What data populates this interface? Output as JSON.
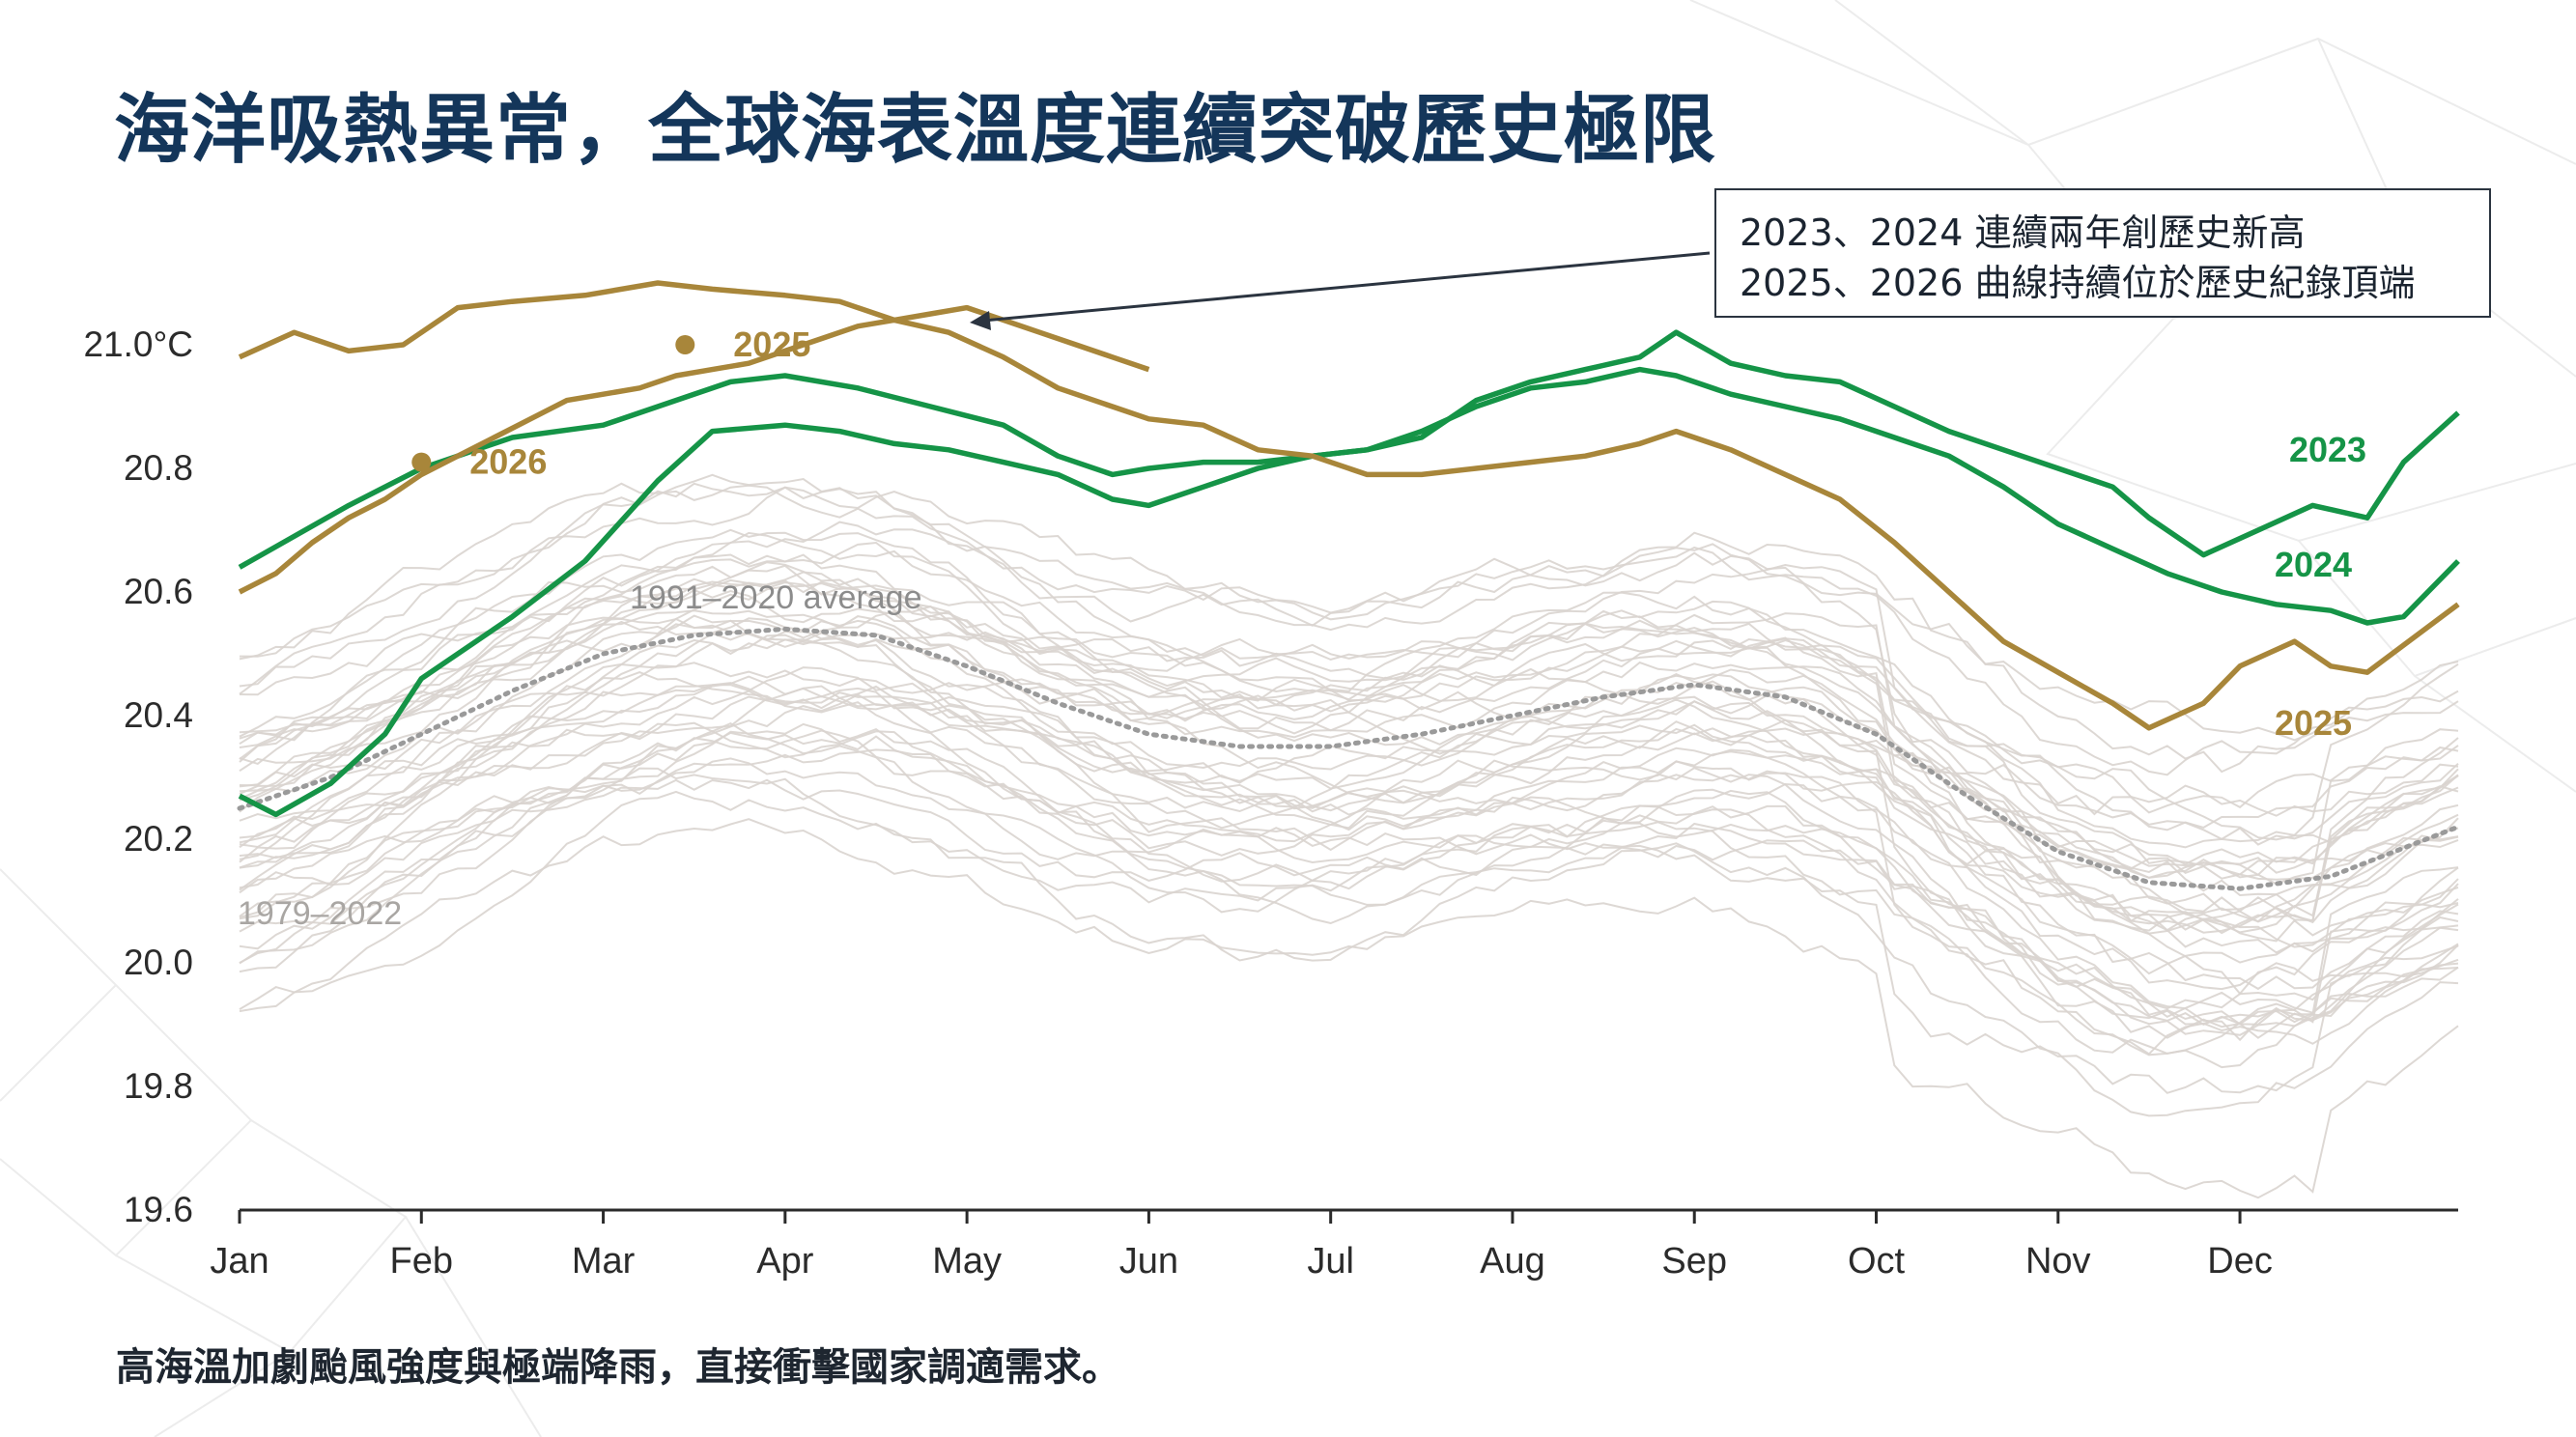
{
  "page": {
    "title": "海洋吸熱異常，全球海表溫度連續突破歷史極限",
    "callout": [
      "2023、2024 連續兩年創歷史新高",
      "2025、2026 曲線持續位於歷史紀錄頂端"
    ],
    "caption": "高海溫加劇颱風強度與極端降雨，直接衝擊國家調適需求。"
  },
  "colors": {
    "title": "#14365a",
    "green": "#159447",
    "gold": "#a8863a",
    "history": "#d9d4cf",
    "average": "#9a9a9a"
  },
  "chart_data": {
    "type": "line",
    "ylim": [
      19.6,
      21.1
    ],
    "y_ticks": [
      19.6,
      19.8,
      20.0,
      20.2,
      20.4,
      20.6,
      20.8,
      21.0
    ],
    "y_tick_labels": [
      "19.6",
      "19.8",
      "20.0",
      "20.2",
      "20.4",
      "20.6",
      "20.8",
      "21.0°C"
    ],
    "x_range": [
      0,
      12.2
    ],
    "months": [
      "Jan",
      "Feb",
      "Mar",
      "Apr",
      "May",
      "Jun",
      "Jul",
      "Aug",
      "Sep",
      "Oct",
      "Nov",
      "Dec"
    ],
    "history_label": "1979–2022",
    "series": [
      {
        "name": "2023",
        "style": "green",
        "label": "2023",
        "x": [
          0,
          0.2,
          0.5,
          0.8,
          1.0,
          1.5,
          1.9,
          2.3,
          2.6,
          3.0,
          3.3,
          3.6,
          3.9,
          4.2,
          4.5,
          4.8,
          5.0,
          5.3,
          5.6,
          5.9,
          6.2,
          6.5,
          6.8,
          7.1,
          7.4,
          7.7,
          7.9,
          8.2,
          8.5,
          8.8,
          9.1,
          9.4,
          9.7,
          10.0,
          10.3,
          10.5,
          10.8,
          11.1,
          11.4,
          11.7,
          11.9,
          12.2
        ],
        "y": [
          20.27,
          20.24,
          20.29,
          20.37,
          20.46,
          20.56,
          20.65,
          20.78,
          20.86,
          20.87,
          20.86,
          20.84,
          20.83,
          20.81,
          20.79,
          20.75,
          20.74,
          20.77,
          20.8,
          20.82,
          20.83,
          20.85,
          20.91,
          20.94,
          20.96,
          20.98,
          21.02,
          20.97,
          20.95,
          20.94,
          20.9,
          20.86,
          20.83,
          20.8,
          20.77,
          20.72,
          20.66,
          20.7,
          20.74,
          20.72,
          20.81,
          20.89
        ]
      },
      {
        "name": "2024",
        "style": "green",
        "label": "2024",
        "x": [
          0,
          0.3,
          0.6,
          1.0,
          1.5,
          2.0,
          2.3,
          2.7,
          3.0,
          3.4,
          3.8,
          4.2,
          4.5,
          4.8,
          5.0,
          5.3,
          5.6,
          5.9,
          6.2,
          6.5,
          6.8,
          7.1,
          7.4,
          7.7,
          7.9,
          8.2,
          8.5,
          8.8,
          9.1,
          9.4,
          9.7,
          10.0,
          10.3,
          10.6,
          10.9,
          11.2,
          11.5,
          11.7,
          11.9,
          12.2
        ],
        "y": [
          20.64,
          20.69,
          20.74,
          20.8,
          20.85,
          20.87,
          20.9,
          20.94,
          20.95,
          20.93,
          20.9,
          20.87,
          20.82,
          20.79,
          20.8,
          20.81,
          20.81,
          20.82,
          20.83,
          20.86,
          20.9,
          20.93,
          20.94,
          20.96,
          20.95,
          20.92,
          20.9,
          20.88,
          20.85,
          20.82,
          20.77,
          20.71,
          20.67,
          20.63,
          20.6,
          20.58,
          20.57,
          20.55,
          20.56,
          20.65
        ]
      },
      {
        "name": "2025",
        "style": "gold",
        "label": "2025",
        "x": [
          0,
          0.3,
          0.6,
          0.9,
          1.2,
          1.5,
          1.9,
          2.3,
          2.6,
          3.0,
          3.3,
          3.6,
          3.9,
          4.2,
          4.5,
          4.8,
          5.0,
          5.3,
          5.6,
          5.9,
          6.2,
          6.5,
          6.8,
          7.1,
          7.4,
          7.7,
          7.9,
          8.2,
          8.5,
          8.8,
          9.1,
          9.4,
          9.7,
          10.0,
          10.3,
          10.5,
          10.8,
          11.0,
          11.3,
          11.5,
          11.7,
          12.2
        ],
        "y": [
          20.98,
          21.02,
          20.99,
          21.0,
          21.06,
          21.07,
          21.08,
          21.1,
          21.09,
          21.08,
          21.07,
          21.04,
          21.02,
          20.98,
          20.93,
          20.9,
          20.88,
          20.87,
          20.83,
          20.82,
          20.79,
          20.79,
          20.8,
          20.81,
          20.82,
          20.84,
          20.86,
          20.83,
          20.79,
          20.75,
          20.68,
          20.6,
          20.52,
          20.47,
          20.42,
          20.38,
          20.42,
          20.48,
          20.52,
          20.48,
          20.47,
          20.58
        ]
      },
      {
        "name": "2026",
        "style": "gold",
        "label": "2026",
        "x": [
          0,
          0.2,
          0.4,
          0.6,
          0.8,
          1.0,
          1.2,
          1.4,
          1.6,
          1.8,
          2.0,
          2.2,
          2.4,
          2.6,
          2.8,
          3.0,
          3.2,
          3.4,
          3.6,
          3.8,
          4.0,
          4.2,
          4.4,
          4.6,
          4.8,
          5.0
        ],
        "y": [
          20.6,
          20.63,
          20.68,
          20.72,
          20.75,
          20.79,
          20.82,
          20.85,
          20.88,
          20.91,
          20.92,
          20.93,
          20.95,
          20.96,
          20.97,
          20.99,
          21.01,
          21.03,
          21.04,
          21.05,
          21.06,
          21.04,
          21.02,
          21.0,
          20.98,
          20.96
        ]
      }
    ],
    "average": {
      "name": "1991–2020 average",
      "label": "1991–2020 average",
      "x": [
        0,
        0.5,
        1.0,
        1.5,
        2.0,
        2.5,
        3.0,
        3.5,
        4.0,
        4.5,
        5.0,
        5.5,
        6.0,
        6.5,
        7.0,
        7.5,
        8.0,
        8.5,
        9.0,
        9.5,
        10.0,
        10.5,
        11.0,
        11.5,
        12.2
      ],
      "y": [
        20.25,
        20.3,
        20.37,
        20.44,
        20.5,
        20.53,
        20.54,
        20.53,
        20.48,
        20.42,
        20.37,
        20.35,
        20.35,
        20.37,
        20.4,
        20.43,
        20.45,
        20.43,
        20.37,
        20.27,
        20.18,
        20.13,
        20.12,
        20.14,
        20.22
      ]
    },
    "markers": [
      {
        "label": "2025",
        "x": 2.45,
        "y": 21.0,
        "style": "gold"
      },
      {
        "label": "2026",
        "x": 1.0,
        "y": 20.81,
        "style": "gold"
      }
    ]
  }
}
